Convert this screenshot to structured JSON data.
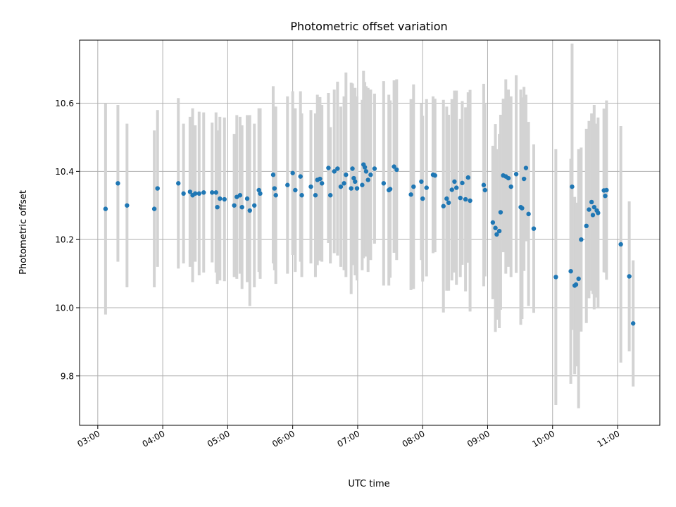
{
  "chart_data": {
    "type": "scatter",
    "title": "Photometric offset variation",
    "xlabel": "UTC time",
    "ylabel": "Photometric offset",
    "x_tick_labels": [
      "03:00",
      "04:00",
      "05:00",
      "06:00",
      "07:00",
      "08:00",
      "09:00",
      "10:00",
      "11:00"
    ],
    "x_tick_hours": [
      3,
      4,
      5,
      6,
      7,
      8,
      9,
      10,
      11
    ],
    "y_ticks": [
      9.8,
      10.0,
      10.2,
      10.4,
      10.6
    ],
    "y_tick_labels": [
      "9.8",
      "10.0",
      "10.2",
      "10.4",
      "10.6"
    ],
    "xlim_hours": [
      2.72,
      11.65
    ],
    "ylim": [
      9.655,
      10.785
    ],
    "grid": true,
    "colors": {
      "points": "#1f77b4",
      "errorbars": "#d3d3d3",
      "grid": "#b0b0b0"
    },
    "points": [
      {
        "t": 3.12,
        "y": 10.29,
        "err": 0.31
      },
      {
        "t": 3.31,
        "y": 10.365,
        "err": 0.23
      },
      {
        "t": 3.45,
        "y": 10.3,
        "err": 0.24
      },
      {
        "t": 3.87,
        "y": 10.29,
        "err": 0.23
      },
      {
        "t": 3.92,
        "y": 10.35,
        "err": 0.23
      },
      {
        "t": 4.24,
        "y": 10.365,
        "err": 0.25
      },
      {
        "t": 4.32,
        "y": 10.335,
        "err": 0.205
      },
      {
        "t": 4.42,
        "y": 10.34,
        "err": 0.22
      },
      {
        "t": 4.46,
        "y": 10.33,
        "err": 0.255
      },
      {
        "t": 4.5,
        "y": 10.335,
        "err": 0.2
      },
      {
        "t": 4.56,
        "y": 10.335,
        "err": 0.24
      },
      {
        "t": 4.63,
        "y": 10.338,
        "err": 0.235
      },
      {
        "t": 4.76,
        "y": 10.338,
        "err": 0.205
      },
      {
        "t": 4.82,
        "y": 10.338,
        "err": 0.235
      },
      {
        "t": 4.84,
        "y": 10.295,
        "err": 0.225
      },
      {
        "t": 4.88,
        "y": 10.32,
        "err": 0.24
      },
      {
        "t": 4.95,
        "y": 10.318,
        "err": 0.24
      },
      {
        "t": 5.1,
        "y": 10.3,
        "err": 0.21
      },
      {
        "t": 5.14,
        "y": 10.325,
        "err": 0.24
      },
      {
        "t": 5.19,
        "y": 10.33,
        "err": 0.23
      },
      {
        "t": 5.22,
        "y": 10.295,
        "err": 0.24
      },
      {
        "t": 5.3,
        "y": 10.32,
        "err": 0.245
      },
      {
        "t": 5.34,
        "y": 10.285,
        "err": 0.28
      },
      {
        "t": 5.41,
        "y": 10.3,
        "err": 0.24
      },
      {
        "t": 5.48,
        "y": 10.345,
        "err": 0.24
      },
      {
        "t": 5.5,
        "y": 10.335,
        "err": 0.25
      },
      {
        "t": 5.7,
        "y": 10.39,
        "err": 0.26
      },
      {
        "t": 5.72,
        "y": 10.35,
        "err": 0.24
      },
      {
        "t": 5.74,
        "y": 10.33,
        "err": 0.26
      },
      {
        "t": 5.92,
        "y": 10.36,
        "err": 0.26
      },
      {
        "t": 6.0,
        "y": 10.395,
        "err": 0.24
      },
      {
        "t": 6.04,
        "y": 10.345,
        "err": 0.24
      },
      {
        "t": 6.12,
        "y": 10.385,
        "err": 0.25
      },
      {
        "t": 6.14,
        "y": 10.33,
        "err": 0.24
      },
      {
        "t": 6.28,
        "y": 10.355,
        "err": 0.225
      },
      {
        "t": 6.35,
        "y": 10.33,
        "err": 0.24
      },
      {
        "t": 6.38,
        "y": 10.375,
        "err": 0.25
      },
      {
        "t": 6.42,
        "y": 10.378,
        "err": 0.24
      },
      {
        "t": 6.45,
        "y": 10.365,
        "err": 0.23
      },
      {
        "t": 6.55,
        "y": 10.41,
        "err": 0.22
      },
      {
        "t": 6.58,
        "y": 10.33,
        "err": 0.2
      },
      {
        "t": 6.64,
        "y": 10.4,
        "err": 0.24
      },
      {
        "t": 6.69,
        "y": 10.408,
        "err": 0.255
      },
      {
        "t": 6.74,
        "y": 10.355,
        "err": 0.235
      },
      {
        "t": 6.79,
        "y": 10.365,
        "err": 0.255
      },
      {
        "t": 6.82,
        "y": 10.39,
        "err": 0.3
      },
      {
        "t": 6.9,
        "y": 10.35,
        "err": 0.31
      },
      {
        "t": 6.92,
        "y": 10.408,
        "err": 0.25
      },
      {
        "t": 6.94,
        "y": 10.38,
        "err": 0.255
      },
      {
        "t": 6.96,
        "y": 10.37,
        "err": 0.275
      },
      {
        "t": 6.99,
        "y": 10.35,
        "err": 0.27
      },
      {
        "t": 7.07,
        "y": 10.36,
        "err": 0.25
      },
      {
        "t": 7.09,
        "y": 10.42,
        "err": 0.275
      },
      {
        "t": 7.11,
        "y": 10.412,
        "err": 0.25
      },
      {
        "t": 7.13,
        "y": 10.4,
        "err": 0.25
      },
      {
        "t": 7.16,
        "y": 10.375,
        "err": 0.27
      },
      {
        "t": 7.2,
        "y": 10.39,
        "err": 0.25
      },
      {
        "t": 7.26,
        "y": 10.408,
        "err": 0.22
      },
      {
        "t": 7.4,
        "y": 10.365,
        "err": 0.3
      },
      {
        "t": 7.48,
        "y": 10.345,
        "err": 0.28
      },
      {
        "t": 7.5,
        "y": 10.348,
        "err": 0.26
      },
      {
        "t": 7.56,
        "y": 10.414,
        "err": 0.253
      },
      {
        "t": 7.6,
        "y": 10.405,
        "err": 0.265
      },
      {
        "t": 7.82,
        "y": 10.332,
        "err": 0.28
      },
      {
        "t": 7.86,
        "y": 10.355,
        "err": 0.3
      },
      {
        "t": 7.98,
        "y": 10.37,
        "err": 0.23
      },
      {
        "t": 8.0,
        "y": 10.32,
        "err": 0.243
      },
      {
        "t": 8.06,
        "y": 10.352,
        "err": 0.26
      },
      {
        "t": 8.16,
        "y": 10.39,
        "err": 0.23
      },
      {
        "t": 8.19,
        "y": 10.388,
        "err": 0.225
      },
      {
        "t": 8.32,
        "y": 10.298,
        "err": 0.312
      },
      {
        "t": 8.37,
        "y": 10.32,
        "err": 0.27
      },
      {
        "t": 8.4,
        "y": 10.308,
        "err": 0.258
      },
      {
        "t": 8.45,
        "y": 10.346,
        "err": 0.266
      },
      {
        "t": 8.49,
        "y": 10.37,
        "err": 0.267
      },
      {
        "t": 8.52,
        "y": 10.352,
        "err": 0.285
      },
      {
        "t": 8.58,
        "y": 10.322,
        "err": 0.232
      },
      {
        "t": 8.61,
        "y": 10.366,
        "err": 0.24
      },
      {
        "t": 8.66,
        "y": 10.318,
        "err": 0.27
      },
      {
        "t": 8.7,
        "y": 10.382,
        "err": 0.25
      },
      {
        "t": 8.73,
        "y": 10.314,
        "err": 0.325
      },
      {
        "t": 8.94,
        "y": 10.36,
        "err": 0.297
      },
      {
        "t": 8.96,
        "y": 10.345,
        "err": 0.253
      },
      {
        "t": 9.08,
        "y": 10.25,
        "err": 0.225
      },
      {
        "t": 9.12,
        "y": 10.234,
        "err": 0.305
      },
      {
        "t": 9.14,
        "y": 10.215,
        "err": 0.25
      },
      {
        "t": 9.18,
        "y": 10.225,
        "err": 0.285
      },
      {
        "t": 9.2,
        "y": 10.28,
        "err": 0.286
      },
      {
        "t": 9.24,
        "y": 10.388,
        "err": 0.225
      },
      {
        "t": 9.28,
        "y": 10.385,
        "err": 0.285
      },
      {
        "t": 9.32,
        "y": 10.38,
        "err": 0.26
      },
      {
        "t": 9.36,
        "y": 10.355,
        "err": 0.265
      },
      {
        "t": 9.44,
        "y": 10.392,
        "err": 0.29
      },
      {
        "t": 9.51,
        "y": 10.295,
        "err": 0.345
      },
      {
        "t": 9.53,
        "y": 10.292,
        "err": 0.325
      },
      {
        "t": 9.56,
        "y": 10.378,
        "err": 0.27
      },
      {
        "t": 9.59,
        "y": 10.41,
        "err": 0.215
      },
      {
        "t": 9.63,
        "y": 10.275,
        "err": 0.27
      },
      {
        "t": 9.71,
        "y": 10.232,
        "err": 0.247
      },
      {
        "t": 10.05,
        "y": 10.09,
        "err": 0.375
      },
      {
        "t": 10.28,
        "y": 10.107,
        "err": 0.33
      },
      {
        "t": 10.3,
        "y": 10.355,
        "err": 0.42
      },
      {
        "t": 10.34,
        "y": 10.065,
        "err": 0.26
      },
      {
        "t": 10.36,
        "y": 10.068,
        "err": 0.24
      },
      {
        "t": 10.4,
        "y": 10.085,
        "err": 0.38
      },
      {
        "t": 10.44,
        "y": 10.2,
        "err": 0.27
      },
      {
        "t": 10.52,
        "y": 10.24,
        "err": 0.285
      },
      {
        "t": 10.56,
        "y": 10.288,
        "err": 0.26
      },
      {
        "t": 10.6,
        "y": 10.31,
        "err": 0.26
      },
      {
        "t": 10.62,
        "y": 10.272,
        "err": 0.232
      },
      {
        "t": 10.64,
        "y": 10.295,
        "err": 0.3
      },
      {
        "t": 10.68,
        "y": 10.285,
        "err": 0.255
      },
      {
        "t": 10.7,
        "y": 10.278,
        "err": 0.28
      },
      {
        "t": 10.79,
        "y": 10.344,
        "err": 0.24
      },
      {
        "t": 10.81,
        "y": 10.328,
        "err": 0.225
      },
      {
        "t": 10.83,
        "y": 10.345,
        "err": 0.263
      },
      {
        "t": 11.05,
        "y": 10.186,
        "err": 0.347
      },
      {
        "t": 11.18,
        "y": 10.092,
        "err": 0.22
      },
      {
        "t": 11.24,
        "y": 9.954,
        "err": 0.185
      }
    ]
  }
}
